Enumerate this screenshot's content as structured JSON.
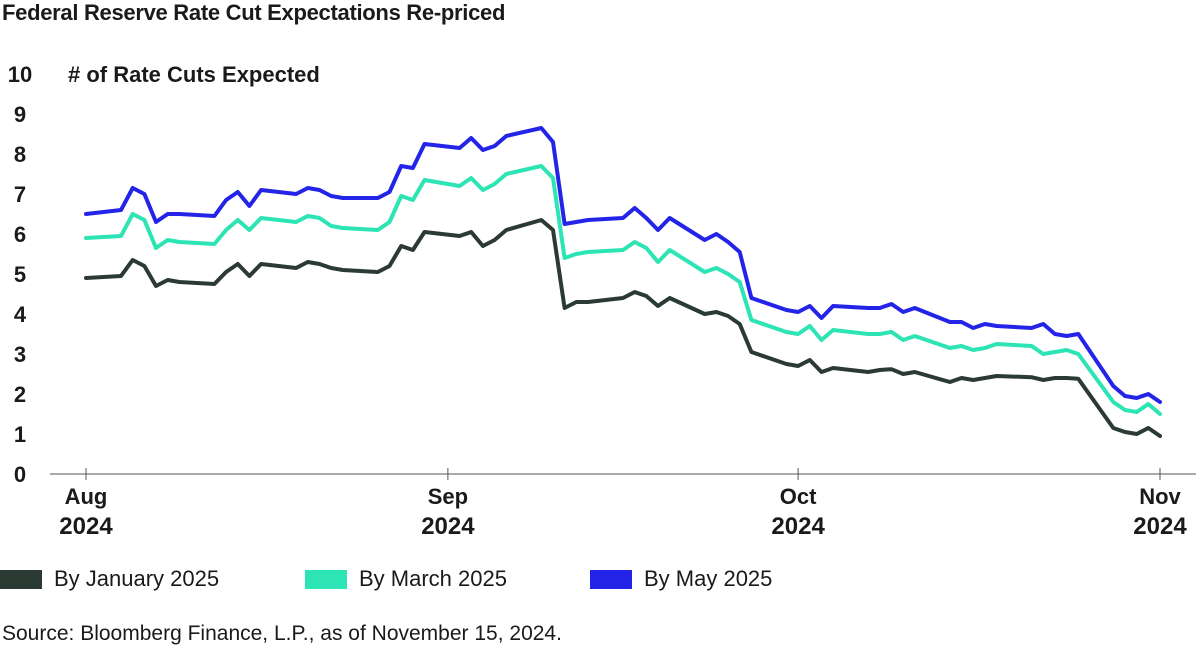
{
  "title": "Federal Reserve Rate Cut Expectations Re-priced",
  "source": "Source: Bloomberg Finance, L.P., as of November 15, 2024.",
  "chart_data": {
    "type": "line",
    "title": "Federal Reserve Rate Cut Expectations Re-priced",
    "ylabel": "# of Rate Cuts Expected",
    "xlabel": "",
    "ylim": [
      0,
      10
    ],
    "yticks": [
      "0",
      "1",
      "2",
      "3",
      "4",
      "5",
      "6",
      "7",
      "8",
      "9",
      "10"
    ],
    "xlim": [
      "2024-08-01",
      "2024-11-01"
    ],
    "xticks": [
      {
        "date": "2024-08-01",
        "month": "Aug",
        "year": "2024"
      },
      {
        "date": "2024-09-01",
        "month": "Sep",
        "year": "2024"
      },
      {
        "date": "2024-10-01",
        "month": "Oct",
        "year": "2024"
      },
      {
        "date": "2024-11-01",
        "month": "Nov",
        "year": "2024"
      }
    ],
    "grid": false,
    "legend": "bottom",
    "x": [
      "2024-08-01",
      "2024-08-04",
      "2024-08-05",
      "2024-08-06",
      "2024-08-07",
      "2024-08-08",
      "2024-08-09",
      "2024-08-12",
      "2024-08-13",
      "2024-08-14",
      "2024-08-15",
      "2024-08-16",
      "2024-08-19",
      "2024-08-20",
      "2024-08-21",
      "2024-08-22",
      "2024-08-23",
      "2024-08-26",
      "2024-08-27",
      "2024-08-28",
      "2024-08-29",
      "2024-08-30",
      "2024-09-02",
      "2024-09-03",
      "2024-09-04",
      "2024-09-05",
      "2024-09-06",
      "2024-09-09",
      "2024-09-10",
      "2024-09-11",
      "2024-09-12",
      "2024-09-13",
      "2024-09-16",
      "2024-09-17",
      "2024-09-18",
      "2024-09-19",
      "2024-09-20",
      "2024-09-23",
      "2024-09-24",
      "2024-09-25",
      "2024-09-26",
      "2024-09-27",
      "2024-09-30",
      "2024-10-01",
      "2024-10-02",
      "2024-10-03",
      "2024-10-04",
      "2024-10-07",
      "2024-10-08",
      "2024-10-09",
      "2024-10-10",
      "2024-10-11",
      "2024-10-14",
      "2024-10-15",
      "2024-10-16",
      "2024-10-17",
      "2024-10-18",
      "2024-10-21",
      "2024-10-22",
      "2024-10-23",
      "2024-10-24",
      "2024-10-25",
      "2024-10-28",
      "2024-10-29",
      "2024-10-30",
      "2024-10-31",
      "2024-11-01"
    ],
    "series": [
      {
        "name": "By January 2025",
        "color": "#2b3a33",
        "values": [
          4.9,
          4.95,
          5.35,
          5.2,
          4.7,
          4.85,
          4.8,
          4.75,
          5.05,
          5.25,
          4.95,
          5.25,
          5.15,
          5.3,
          5.25,
          5.15,
          5.1,
          5.05,
          5.2,
          5.7,
          5.6,
          6.05,
          5.95,
          6.05,
          5.7,
          5.85,
          6.1,
          6.35,
          6.1,
          4.15,
          4.3,
          4.3,
          4.4,
          4.55,
          4.45,
          4.2,
          4.4,
          4.0,
          4.05,
          3.95,
          3.75,
          3.05,
          2.75,
          2.7,
          2.85,
          2.55,
          2.65,
          2.55,
          2.6,
          2.62,
          2.5,
          2.55,
          2.3,
          2.4,
          2.35,
          2.4,
          2.45,
          2.42,
          2.35,
          2.4,
          2.4,
          2.38,
          1.15,
          1.05,
          1.0,
          1.15,
          0.95
        ]
      },
      {
        "name": "By March 2025",
        "color": "#2ce4b4",
        "values": [
          5.9,
          5.95,
          6.5,
          6.35,
          5.65,
          5.85,
          5.8,
          5.75,
          6.1,
          6.35,
          6.1,
          6.4,
          6.3,
          6.45,
          6.4,
          6.2,
          6.15,
          6.1,
          6.3,
          6.95,
          6.85,
          7.35,
          7.2,
          7.4,
          7.1,
          7.25,
          7.5,
          7.7,
          7.4,
          5.4,
          5.5,
          5.55,
          5.6,
          5.8,
          5.65,
          5.3,
          5.6,
          5.05,
          5.15,
          5.0,
          4.8,
          3.85,
          3.55,
          3.5,
          3.7,
          3.35,
          3.6,
          3.5,
          3.5,
          3.55,
          3.35,
          3.45,
          3.15,
          3.2,
          3.1,
          3.15,
          3.25,
          3.2,
          3.0,
          3.05,
          3.1,
          3.0,
          1.8,
          1.6,
          1.55,
          1.75,
          1.5
        ]
      },
      {
        "name": "By May 2025",
        "color": "#2424e8",
        "values": [
          6.5,
          6.6,
          7.15,
          7.0,
          6.3,
          6.5,
          6.5,
          6.45,
          6.85,
          7.05,
          6.7,
          7.1,
          7.0,
          7.15,
          7.1,
          6.95,
          6.9,
          6.9,
          7.05,
          7.7,
          7.65,
          8.25,
          8.15,
          8.4,
          8.1,
          8.2,
          8.45,
          8.65,
          8.3,
          6.25,
          6.3,
          6.35,
          6.4,
          6.65,
          6.4,
          6.1,
          6.4,
          5.85,
          6.0,
          5.8,
          5.55,
          4.4,
          4.1,
          4.05,
          4.2,
          3.9,
          4.2,
          4.15,
          4.15,
          4.25,
          4.05,
          4.15,
          3.8,
          3.8,
          3.65,
          3.75,
          3.7,
          3.65,
          3.75,
          3.5,
          3.45,
          3.5,
          2.2,
          1.95,
          1.9,
          2.0,
          1.8
        ]
      }
    ]
  }
}
